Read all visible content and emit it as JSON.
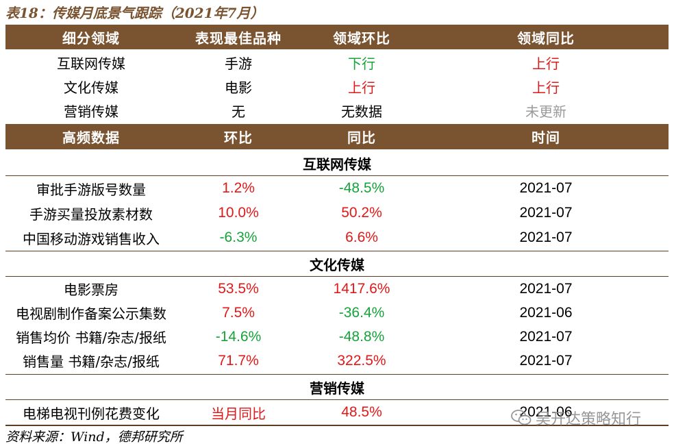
{
  "title": "表18：传媒月底景气跟踪（2021年7月）",
  "header1": [
    "细分领域",
    "表现最佳品种",
    "领域环比",
    "领域同比"
  ],
  "sector_rows": [
    {
      "domain": "互联网传媒",
      "best": "手游",
      "mom": "下行",
      "yoy": "上行"
    },
    {
      "domain": "文化传媒",
      "best": "电影",
      "mom": "上行",
      "yoy": "上行"
    },
    {
      "domain": "营销传媒",
      "best": "无",
      "mom": "无数据",
      "yoy": "未更新"
    }
  ],
  "header2": [
    "高频数据",
    "环比",
    "同比",
    "时间"
  ],
  "sections": [
    {
      "name": "互联网传媒",
      "rows": [
        {
          "item": "审批手游版号数量",
          "mom": "1.2%",
          "yoy": "-48.5%",
          "time": "2021-07"
        },
        {
          "item": "手游买量投放素材数",
          "mom": "10.0%",
          "yoy": "50.2%",
          "time": "2021-07"
        },
        {
          "item": "中国移动游戏销售收入",
          "mom": "-6.3%",
          "yoy": "6.6%",
          "time": "2021-07"
        }
      ]
    },
    {
      "name": "文化传媒",
      "rows": [
        {
          "item": "电影票房",
          "mom": "53.5%",
          "yoy": "1417.6%",
          "time": "2021-07"
        },
        {
          "item": "电视剧制作备案公示集数",
          "mom": "7.5%",
          "yoy": "-36.4%",
          "time": "2021-06"
        },
        {
          "item": "销售均价 书籍/杂志/报纸",
          "mom": "-14.6%",
          "yoy": "-48.8%",
          "time": "2021-07"
        },
        {
          "item": "销售量 书籍/杂志/报纸",
          "mom": "71.7%",
          "yoy": "322.5%",
          "time": "2021-07"
        }
      ]
    },
    {
      "name": "营销传媒",
      "rows": [
        {
          "item": "电梯电视刊例花费变化",
          "mom": "当月同比",
          "yoy": "48.5%",
          "time": "2021-06"
        }
      ]
    }
  ],
  "source": "资料来源：Wind，德邦研究所",
  "watermark": "吴开达策略知行",
  "colors": {
    "header_bg": "#7a5330",
    "up": "#e01818",
    "down": "#15a33a",
    "na": "#9a9a9a"
  }
}
